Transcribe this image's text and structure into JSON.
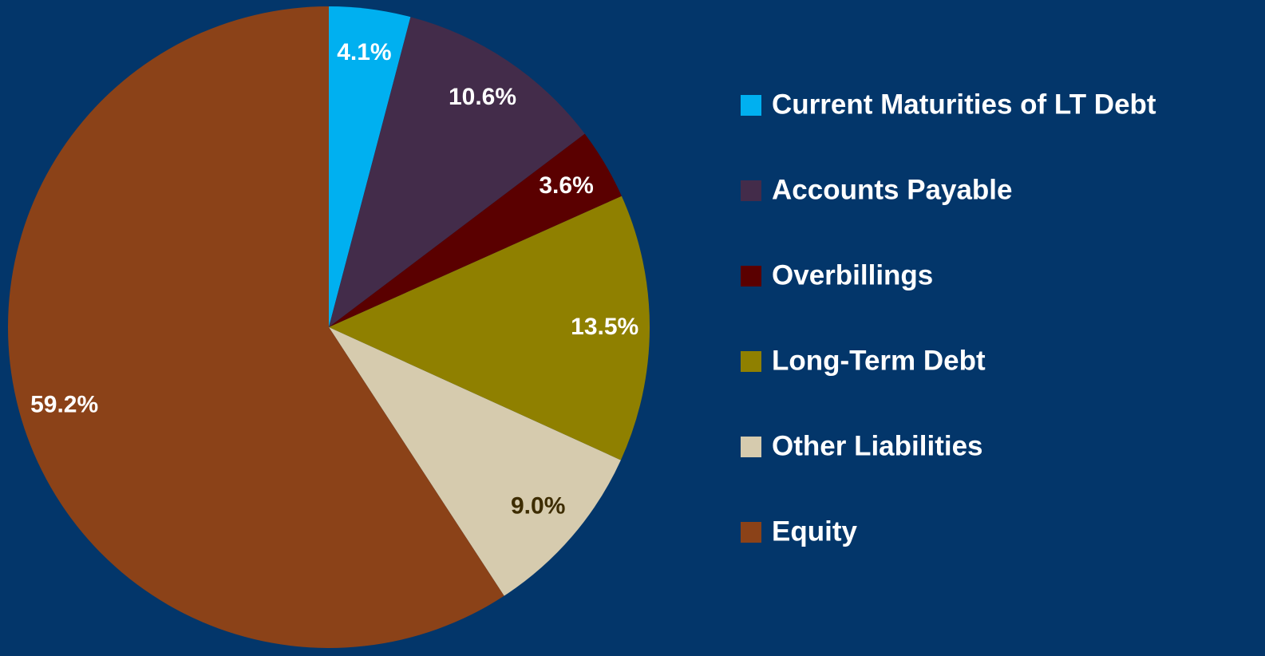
{
  "chart_data": {
    "type": "pie",
    "categories": [
      "Current Maturities of LT Debt",
      "Accounts Payable",
      "Overbillings",
      "Long-Term Debt",
      "Other Liabilities",
      "Equity"
    ],
    "values": [
      4.1,
      10.6,
      3.6,
      13.5,
      9.0,
      59.2
    ],
    "value_labels": [
      "4.1%",
      "10.6%",
      "3.6%",
      "13.5%",
      "9.0%",
      "59.2%"
    ],
    "colors": [
      "#00b0f0",
      "#432c4a",
      "#5a0000",
      "#8f8000",
      "#d6cbae",
      "#8b4218"
    ],
    "label_colors": [
      "#ffffff",
      "#ffffff",
      "#ffffff",
      "#ffffff",
      "#3d2c00",
      "#ffffff"
    ],
    "legend": "right"
  }
}
